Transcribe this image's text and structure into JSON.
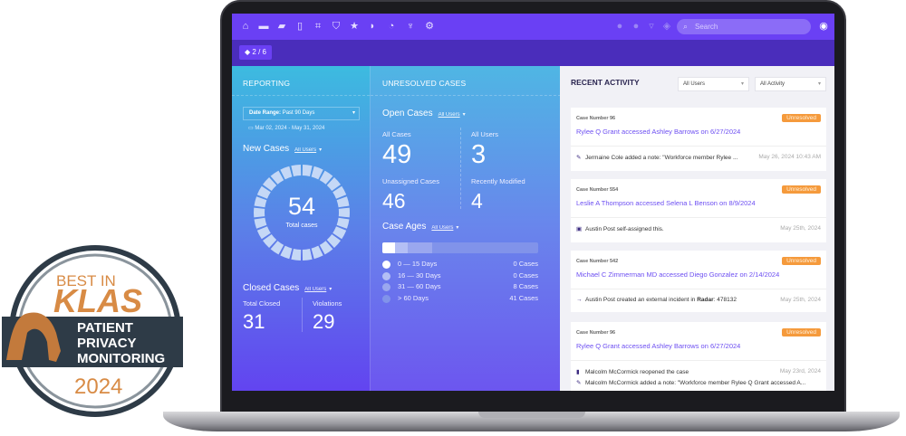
{
  "nav": {
    "icons": [
      "home-icon",
      "folder-icon",
      "folders-icon",
      "file-search-icon",
      "network-icon",
      "shield-icon",
      "star-icon",
      "tag-icon",
      "gauge-icon",
      "plug-icon",
      "gear-icon"
    ],
    "right_icons": [
      "info-icon",
      "help-icon",
      "filter-icon",
      "layers-icon"
    ],
    "search_placeholder": "Search"
  },
  "pager": "2 / 6",
  "reporting": {
    "title": "REPORTING",
    "date_range_label": "Date Range:",
    "date_range_value": "Past 90 Days",
    "dates": "Mar 02, 2024 - May 31, 2024",
    "new_cases": {
      "title": "New Cases",
      "filter": "All Users",
      "total": "54",
      "total_label": "Total cases"
    },
    "closed_cases": {
      "title": "Closed Cases",
      "filter": "All Users",
      "total_closed_label": "Total Closed",
      "total_closed": "31",
      "violations_label": "Violations",
      "violations": "29"
    }
  },
  "unresolved": {
    "title": "UNRESOLVED CASES",
    "open_cases": {
      "title": "Open Cases",
      "filter": "All Users",
      "all_cases_label": "All Cases",
      "all_cases": "49",
      "all_users_label": "All Users",
      "all_users": "3",
      "unassigned_label": "Unassigned Cases",
      "unassigned": "46",
      "recent_label": "Recently Modified",
      "recent": "4"
    },
    "case_ages": {
      "title": "Case Ages",
      "filter": "All Users",
      "rows": [
        {
          "range": "0 — 15 Days",
          "count": "0 Cases",
          "value": 0,
          "color": "#ffffff"
        },
        {
          "range": "16 — 30 Days",
          "count": "0 Cases",
          "value": 0,
          "color": "#b4bff5"
        },
        {
          "range": "31 — 60 Days",
          "count": "8 Cases",
          "value": 8,
          "color": "#9aa7ef"
        },
        {
          "range": "> 60 Days",
          "count": "41 Cases",
          "value": 41,
          "color": "#8193ea"
        }
      ]
    }
  },
  "activity": {
    "title": "RECENT ACTIVITY",
    "users_filter": "All Users",
    "activity_filter": "All Activity",
    "cards": [
      {
        "case": "Case Number 96",
        "status": "Unresolved",
        "title": "Rylee Q Grant accessed Ashley Barrows on 6/27/2024",
        "items": [
          {
            "icon": "pencil-icon",
            "text": "Jermaine Cole  added a note: \"Workforce member Rylee ...",
            "time": "May 26, 2024 10:43 AM"
          }
        ]
      },
      {
        "case": "Case Number 554",
        "status": "Unresolved",
        "title": "Leslie A Thompson accessed Selena L Benson on 8/9/2024",
        "items": [
          {
            "icon": "user-badge-icon",
            "text": "Austin Post self-assigned this.",
            "time": "May 25th, 2024"
          }
        ]
      },
      {
        "case": "Case Number 542",
        "status": "Unresolved",
        "title": "Michael C Zimmerman MD accessed Diego Gonzalez on 2/14/2024",
        "items": [
          {
            "icon": "arrow-right-icon",
            "text": "Austin Post created an external incident in ",
            "bold": "Radar",
            "suffix": ": 478132",
            "time": "May 25th, 2024"
          }
        ]
      },
      {
        "case": "Case Number 96",
        "status": "Unresolved",
        "title": "Rylee Q Grant accessed Ashley Barrows on 6/27/2024",
        "items": [
          {
            "icon": "reopen-icon",
            "text": "Malcolm McCormick reopened the case",
            "time": "May 23rd, 2024"
          },
          {
            "icon": "pencil-icon",
            "text": "Malcolm McCormick added a note: \"Workforce member Rylee Q Grant accessed A...",
            "time": ""
          }
        ]
      }
    ]
  },
  "klas_badge": {
    "line1": "BEST IN",
    "line2": "KLAS",
    "line3": "PATIENT",
    "line4": "PRIVACY",
    "line5": "MONITORING",
    "year": "2024"
  }
}
